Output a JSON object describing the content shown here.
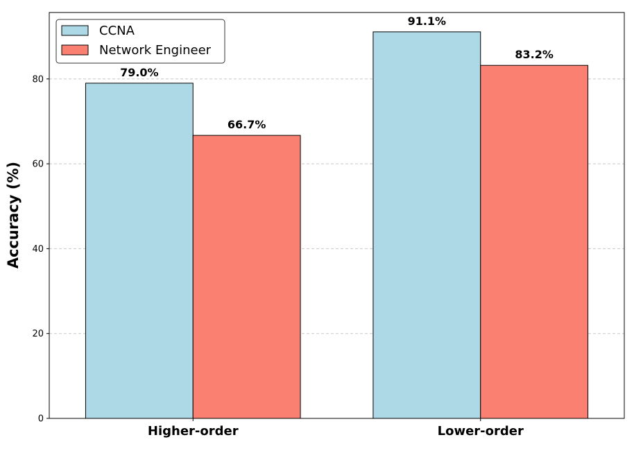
{
  "chart_data": {
    "type": "bar",
    "categories": [
      "Higher-order",
      "Lower-order"
    ],
    "series": [
      {
        "name": "CCNA",
        "values": [
          79.0,
          91.1
        ],
        "color": "#add8e6"
      },
      {
        "name": "Network Engineer",
        "values": [
          66.7,
          83.2
        ],
        "color": "#fa8072"
      }
    ],
    "data_labels": [
      [
        "79.0%",
        "91.1%"
      ],
      [
        "66.7%",
        "83.2%"
      ]
    ],
    "title": "",
    "xlabel": "",
    "ylabel": "Accuracy (%)",
    "ylim": [
      0,
      95.66
    ],
    "yticks": [
      0,
      20,
      40,
      60,
      80
    ],
    "ytick_labels": [
      "0",
      "20",
      "40",
      "60",
      "80"
    ],
    "grid": "y-dashed",
    "legend_position": "top-left"
  }
}
